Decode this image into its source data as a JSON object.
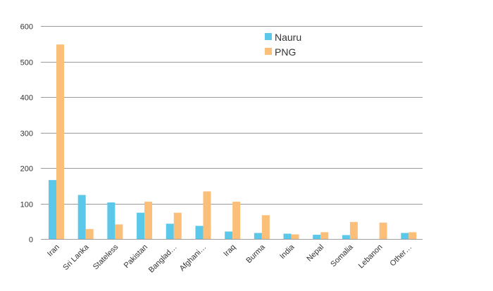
{
  "chart_data": {
    "type": "bar",
    "title": "",
    "xlabel": "",
    "ylabel": "",
    "ylim": [
      0,
      600
    ],
    "yticks": [
      0,
      100,
      200,
      300,
      400,
      500,
      600
    ],
    "categories": [
      "Iran",
      "Sri Lanka",
      "Stateless",
      "Pakistan",
      "Banglad…",
      "Afghani…",
      "Iraq",
      "Burma",
      "India",
      "Nepal",
      "Somalia",
      "Lebanon",
      "Other…"
    ],
    "series": [
      {
        "name": "Nauru",
        "color": "#5bc8ea",
        "values": [
          166,
          124,
          103,
          74,
          43,
          37,
          21,
          17,
          15,
          12,
          11,
          0,
          17
        ]
      },
      {
        "name": "PNG",
        "color": "#fbbf7a",
        "values": [
          548,
          28,
          41,
          105,
          74,
          134,
          105,
          67,
          13,
          19,
          48,
          46,
          19
        ]
      }
    ],
    "grid": true,
    "legend_position": "top-right"
  }
}
